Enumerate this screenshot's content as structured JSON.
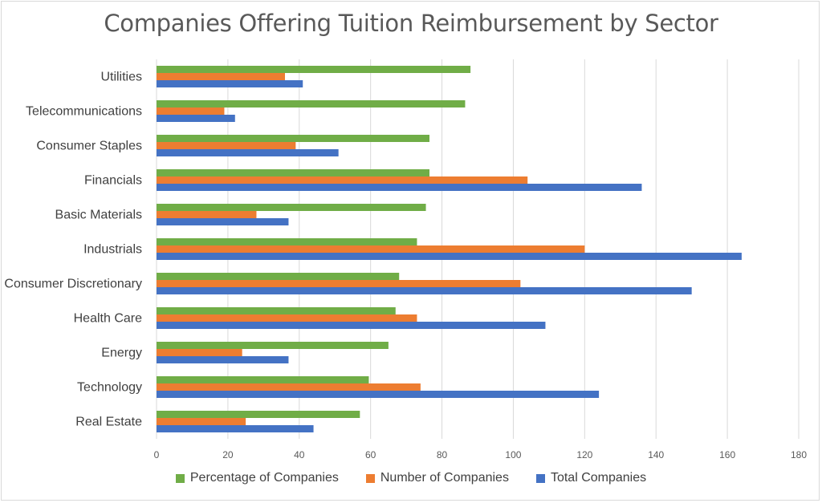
{
  "chart_data": {
    "type": "bar",
    "orientation": "horizontal",
    "title": "Companies Offering Tuition Reimbursement by Sector",
    "categories": [
      "Utilities",
      "Telecommunications",
      "Consumer Staples",
      "Financials",
      "Basic Materials",
      "Industrials",
      "Consumer Discretionary",
      "Health Care",
      "Energy",
      "Technology",
      "Real Estate"
    ],
    "series": [
      {
        "name": "Percentage of Companies",
        "color": "#70ad47",
        "values": [
          88,
          86.5,
          76.5,
          76.5,
          75.5,
          73,
          68,
          67,
          65,
          59.5,
          57
        ]
      },
      {
        "name": "Number of Companies",
        "color": "#ed7d31",
        "values": [
          36,
          19,
          39,
          104,
          28,
          120,
          102,
          73,
          24,
          74,
          25
        ]
      },
      {
        "name": "Total Companies",
        "color": "#4472c4",
        "values": [
          41,
          22,
          51,
          136,
          37,
          164,
          150,
          109,
          37,
          124,
          44
        ]
      }
    ],
    "xlim": [
      0,
      180
    ],
    "xticks": [
      "0",
      "20",
      "40",
      "60",
      "80",
      "100",
      "120",
      "140",
      "160",
      "180"
    ],
    "grid": true,
    "legend_position": "bottom"
  }
}
